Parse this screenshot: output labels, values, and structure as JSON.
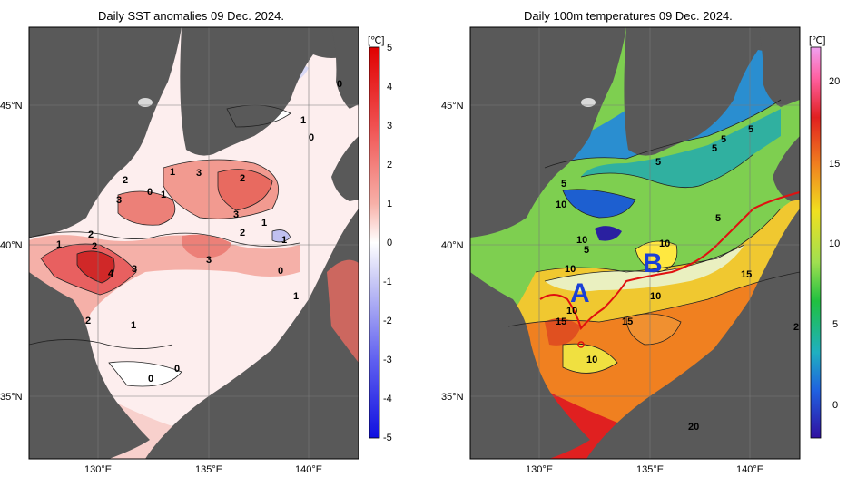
{
  "panels": [
    {
      "title": "Daily SST anomalies 09 Dec. 2024.",
      "unit": "[℃]",
      "colorbar_ticks": [
        "5",
        "4",
        "3",
        "2",
        "1",
        "0",
        "-1",
        "-2",
        "-3",
        "-4",
        "-5"
      ],
      "contour_labels": [
        "0",
        "1",
        "0",
        "1",
        "2",
        "3",
        "2",
        "1",
        "0",
        "1",
        "3",
        "2",
        "1",
        "3",
        "2",
        "1",
        "2",
        "3",
        "4",
        "3",
        "2",
        "1",
        "0",
        "0",
        "0",
        "1"
      ]
    },
    {
      "title": "Daily 100m temperatures 09 Dec. 2024.",
      "unit": "[℃]",
      "colorbar_ticks": [
        "20",
        "15",
        "10",
        "5",
        "0"
      ],
      "contour_labels": [
        "5",
        "5",
        "5",
        "5",
        "5",
        "5",
        "10",
        "10",
        "5",
        "10",
        "10",
        "15",
        "10",
        "10",
        "15",
        "15",
        "10",
        "2",
        "20"
      ],
      "markers": [
        "A",
        "B"
      ]
    }
  ],
  "axes": {
    "lat_labels": [
      "45°N",
      "40°N",
      "35°N"
    ],
    "lon_labels": [
      "130°E",
      "135°E",
      "140°E"
    ]
  },
  "colors": {
    "land": "#595959",
    "anomaly_max": "#e03030",
    "anomaly_min": "#2020e0",
    "warm_100m": "#e03010",
    "cold_100m": "#1040c0",
    "front_line": "#e01010",
    "marker_text": "#1a3fd6"
  }
}
